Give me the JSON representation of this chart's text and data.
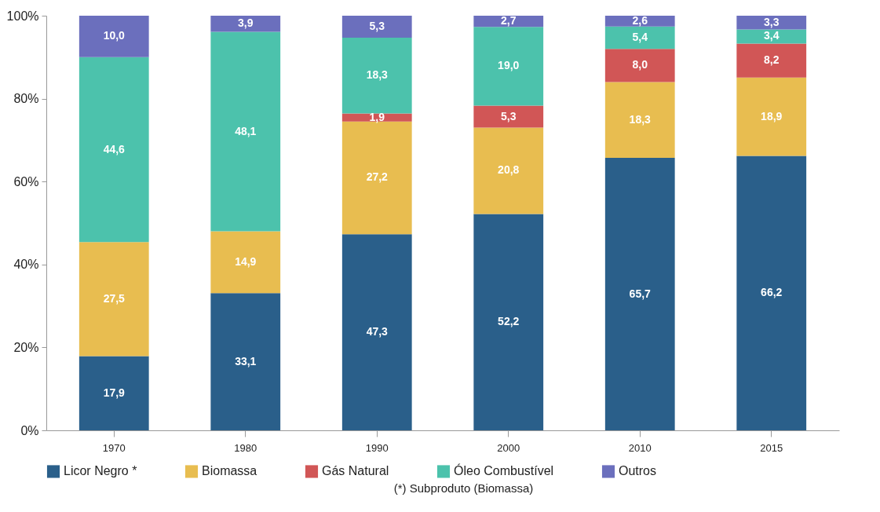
{
  "chart_data": {
    "type": "bar",
    "stacked": true,
    "categories": [
      "1970",
      "1980",
      "1990",
      "2000",
      "2010",
      "2015"
    ],
    "series": [
      {
        "name": "Licor Negro *",
        "color": "#2a5f8a",
        "values": [
          17.9,
          33.1,
          47.3,
          52.2,
          65.7,
          66.2
        ],
        "value_labels": [
          "17,9",
          "33,1",
          "47,3",
          "52,2",
          "65,7",
          "66,2"
        ]
      },
      {
        "name": "Biomassa",
        "color": "#e8bd50",
        "values": [
          27.5,
          14.9,
          27.2,
          20.8,
          18.3,
          18.9
        ],
        "value_labels": [
          "27,5",
          "14,9",
          "27,2",
          "20,8",
          "18,3",
          "18,9"
        ]
      },
      {
        "name": "Gás Natural",
        "color": "#d15656",
        "values": [
          null,
          null,
          1.9,
          5.3,
          8.0,
          8.2
        ],
        "value_labels": [
          null,
          null,
          "1,9",
          "5,3",
          "8,0",
          "8,2"
        ]
      },
      {
        "name": "Óleo Combustível",
        "color": "#4cc2ac",
        "values": [
          44.6,
          48.1,
          18.3,
          19.0,
          5.4,
          3.4
        ],
        "value_labels": [
          "44,6",
          "48,1",
          "18,3",
          "19,0",
          "5,4",
          "3,4"
        ]
      },
      {
        "name": "Outros",
        "color": "#6b6fbd",
        "values": [
          10.0,
          3.9,
          5.3,
          2.7,
          2.6,
          3.3
        ],
        "value_labels": [
          "10,0",
          "3,9",
          "5,3",
          "2,7",
          "2,6",
          "3,3"
        ]
      }
    ],
    "ylim": [
      0,
      100
    ],
    "yticks": [
      {
        "value": 0,
        "label": "0%"
      },
      {
        "value": 20,
        "label": "20%"
      },
      {
        "value": 40,
        "label": "40%"
      },
      {
        "value": 60,
        "label": "60%"
      },
      {
        "value": 80,
        "label": "80%"
      },
      {
        "value": 100,
        "label": "100%"
      }
    ],
    "legend": "bottom",
    "annotations": [
      "(*) Subproduto (Biomassa)"
    ]
  }
}
